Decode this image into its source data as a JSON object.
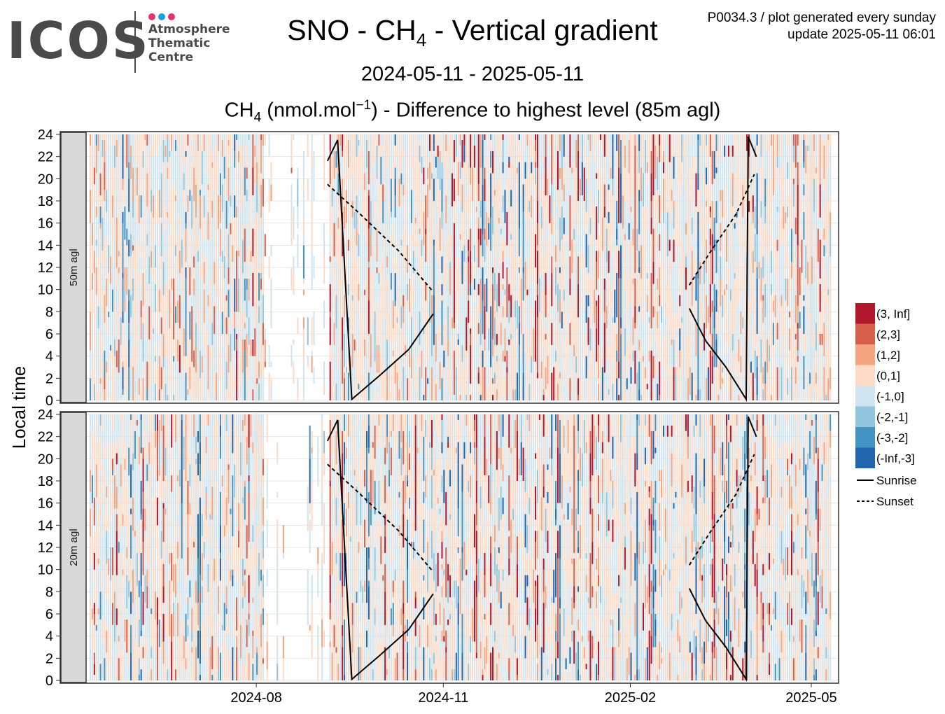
{
  "header": {
    "logo_word": "ICOS",
    "logo_lines": [
      "Atmosphere",
      "Thematic",
      "Centre"
    ],
    "logo_dot_colors": [
      "#e6336e",
      "#1ea0e0",
      "#e6336e"
    ],
    "title_prefix": "SNO - CH",
    "title_sub": "4",
    "title_suffix": " - Vertical gradient",
    "period": "2024-05-11 - 2025-05-11",
    "subtitle_prefix": "CH",
    "subtitle_sub": "4",
    "subtitle_mid": " (nmol.mol",
    "subtitle_sup": "−1",
    "subtitle_suffix": ") - Difference to highest level (85m agl)",
    "meta_line1": "P0034.3 / plot generated every sunday",
    "meta_line2": "update  2025-05-11 06:01"
  },
  "chart_data": {
    "type": "heatmap",
    "ylabel": "Local time",
    "x_range": [
      "2024-05-11",
      "2025-05-11"
    ],
    "x_ticks": [
      {
        "date": "2024-08-01",
        "label": "2024-08"
      },
      {
        "date": "2024-11-01",
        "label": "2024-11"
      },
      {
        "date": "2025-02-01",
        "label": "2025-02"
      },
      {
        "date": "2025-05-01",
        "label": "2025-05"
      }
    ],
    "y_ticks": [
      0,
      2,
      4,
      6,
      8,
      10,
      12,
      14,
      16,
      18,
      20,
      22,
      24
    ],
    "ylim": [
      0,
      24
    ],
    "grid": true,
    "facets": [
      "50m agl",
      "20m agl"
    ],
    "legend": {
      "position": "right",
      "classes": [
        {
          "label": "(3, Inf]",
          "color": "#b2182b"
        },
        {
          "label": "(2,3]",
          "color": "#d6604d"
        },
        {
          "label": "(1,2]",
          "color": "#f4a582"
        },
        {
          "label": "(0,1]",
          "color": "#fddbc7"
        },
        {
          "label": "(-1,0]",
          "color": "#d1e5f0"
        },
        {
          "label": "(-2,-1]",
          "color": "#92c5de"
        },
        {
          "label": "(-3,-2]",
          "color": "#4393c3"
        },
        {
          "label": "(-Inf,-3]",
          "color": "#2166ac"
        }
      ],
      "lines": [
        {
          "label": "Sunrise",
          "style": "solid"
        },
        {
          "label": "Sunset",
          "style": "dashed"
        }
      ]
    },
    "sunrise_segments": [
      [
        [
          "2024-09-05",
          21.6
        ],
        [
          "2024-09-10",
          23.5
        ],
        [
          "2024-09-17",
          0.1
        ],
        [
          "2024-10-01",
          2.3
        ],
        [
          "2024-10-15",
          4.6
        ],
        [
          "2024-10-27",
          7.8
        ]
      ],
      [
        [
          "2025-03-02",
          8.3
        ],
        [
          "2025-03-10",
          5.4
        ],
        [
          "2025-03-20",
          3.0
        ],
        [
          "2025-03-30",
          0.1
        ],
        [
          "2025-03-31",
          23.8
        ],
        [
          "2025-04-04",
          22.0
        ]
      ]
    ],
    "sunset_segments": [
      [
        [
          "2024-09-05",
          19.5
        ],
        [
          "2024-09-20",
          17.0
        ],
        [
          "2024-10-10",
          13.5
        ],
        [
          "2024-10-27",
          9.8
        ]
      ],
      [
        [
          "2025-03-02",
          10.4
        ],
        [
          "2025-03-12",
          13.3
        ],
        [
          "2025-03-25",
          16.8
        ],
        [
          "2025-04-03",
          20.4
        ]
      ]
    ],
    "blank_period": [
      "2024-08-05",
      "2024-09-05"
    ]
  }
}
